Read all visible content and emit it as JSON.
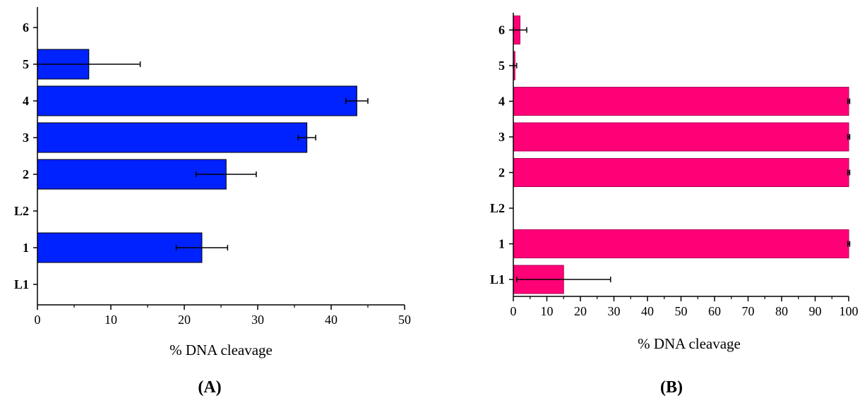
{
  "chart_data": [
    {
      "type": "bar",
      "orientation": "horizontal",
      "panel_label": "(A)",
      "xlabel": "% DNA cleavage",
      "ylabel": "",
      "xlim": [
        0,
        50
      ],
      "x_ticks": [
        "0",
        "10",
        "20",
        "30",
        "40",
        "50"
      ],
      "categories": [
        "L1",
        "1",
        "L2",
        "2",
        "3",
        "4",
        "5",
        "6"
      ],
      "values": [
        0,
        22.4,
        0,
        25.7,
        36.7,
        43.5,
        7.0,
        0
      ],
      "errors": [
        0,
        3.5,
        0,
        4.1,
        1.2,
        1.5,
        7.0,
        0
      ],
      "color": "#0022ff",
      "grid": false
    },
    {
      "type": "bar",
      "orientation": "horizontal",
      "panel_label": "(B)",
      "xlabel": "% DNA cleavage",
      "ylabel": "",
      "xlim": [
        0,
        100
      ],
      "x_ticks": [
        "0",
        "10",
        "20",
        "30",
        "40",
        "50",
        "60",
        "70",
        "80",
        "90",
        "100"
      ],
      "categories": [
        "L1",
        "1",
        "L2",
        "2",
        "3",
        "4",
        "5",
        "6"
      ],
      "values": [
        15,
        100,
        0,
        100,
        100,
        100,
        0.5,
        2
      ],
      "errors": [
        14,
        0.3,
        0,
        0.3,
        0.3,
        0.3,
        0.5,
        2
      ],
      "color": "#ff0077",
      "grid": false
    }
  ]
}
